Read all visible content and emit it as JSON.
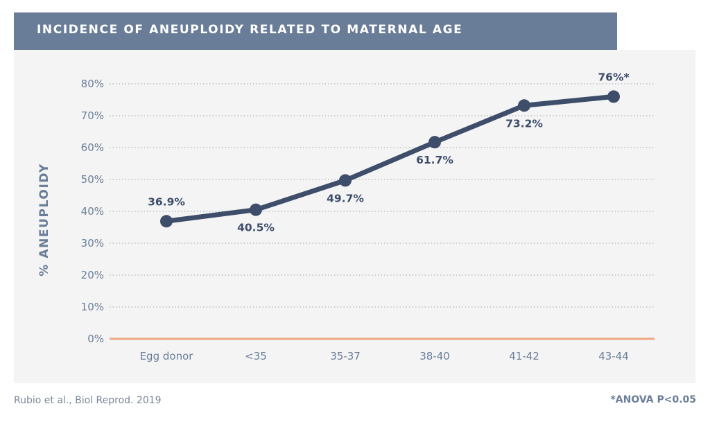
{
  "title": "INCIDENCE OF ANEUPLOIDY RELATED TO MATERNAL AGE",
  "footer": {
    "source": "Rubio et al., Biol Reprod. 2019",
    "note": "*ANOVA P<0.05"
  },
  "colors": {
    "title_bar": "#6a7d98",
    "panel_bg": "#f4f4f4",
    "line": "#3d4d6a",
    "axis_text": "#6a7d98",
    "baseline": "#f0a882",
    "grid": "#9aa3b0"
  },
  "chart_data": {
    "type": "line",
    "title": "INCIDENCE OF ANEUPLOIDY RELATED TO MATERNAL AGE",
    "xlabel": "",
    "ylabel": "% ANEUPLOIDY",
    "ylim": [
      0,
      80
    ],
    "yticks": [
      "0%",
      "10%",
      "20%",
      "30%",
      "40%",
      "50%",
      "60%",
      "70%",
      "80%"
    ],
    "categories": [
      "Egg donor",
      "<35",
      "35-37",
      "38-40",
      "41-42",
      "43-44"
    ],
    "values": [
      36.9,
      40.5,
      49.7,
      61.7,
      73.2,
      76
    ],
    "data_labels": [
      "36.9%",
      "40.5%",
      "49.7%",
      "61.7%",
      "73.2%",
      "76%*"
    ],
    "label_positions": [
      "above",
      "below",
      "below",
      "below",
      "below",
      "above"
    ],
    "grid": "dotted horizontal",
    "legend": "none"
  }
}
